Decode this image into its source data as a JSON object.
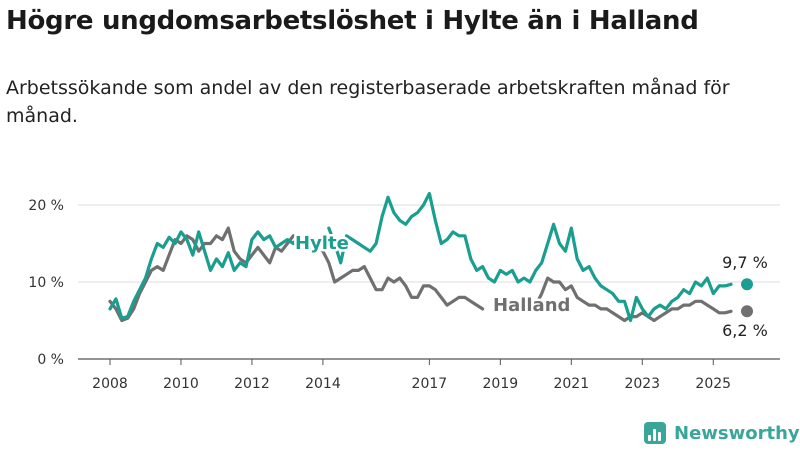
{
  "header": {
    "title": "Högre ungdomsarbetslöshet i Hylte än i Halland",
    "subtitle": "Arbetssökande som andel av den registerbaserade arbetskraften månad för månad."
  },
  "brand": {
    "name": "Newsworthy",
    "icon": "bar-chart-logo-icon",
    "color": "#3aa69a"
  },
  "chart_data": {
    "type": "line",
    "title": "",
    "xlabel": "",
    "ylabel": "",
    "x_ticks": [
      "2008",
      "2010",
      "2012",
      "2014",
      "2017",
      "2019",
      "2021",
      "2023",
      "2025"
    ],
    "y_ticks": [
      "0 %",
      "10 %",
      "20 %"
    ],
    "ylim": [
      0,
      24
    ],
    "grid": "horizontal",
    "series": [
      {
        "name": "Hylte",
        "color": "#1a9e8f",
        "end_label": "9,7 %",
        "points": [
          [
            "2008-01",
            6.5
          ],
          [
            "2008-03",
            7.8
          ],
          [
            "2008-05",
            5.3
          ],
          [
            "2008-07",
            5.5
          ],
          [
            "2008-09",
            7.5
          ],
          [
            "2008-11",
            9.0
          ],
          [
            "2009-01",
            10.5
          ],
          [
            "2009-03",
            13.0
          ],
          [
            "2009-05",
            15.0
          ],
          [
            "2009-07",
            14.5
          ],
          [
            "2009-09",
            15.8
          ],
          [
            "2009-11",
            15.0
          ],
          [
            "2010-01",
            16.5
          ],
          [
            "2010-03",
            15.5
          ],
          [
            "2010-05",
            13.5
          ],
          [
            "2010-07",
            16.5
          ],
          [
            "2010-09",
            14.0
          ],
          [
            "2010-11",
            11.5
          ],
          [
            "2011-01",
            13.0
          ],
          [
            "2011-03",
            12.0
          ],
          [
            "2011-05",
            13.8
          ],
          [
            "2011-07",
            11.5
          ],
          [
            "2011-09",
            12.5
          ],
          [
            "2011-11",
            12.0
          ],
          [
            "2012-01",
            15.5
          ],
          [
            "2012-03",
            16.5
          ],
          [
            "2012-05",
            15.5
          ],
          [
            "2012-07",
            16.0
          ],
          [
            "2012-09",
            14.5
          ],
          [
            "2012-11",
            15.0
          ],
          [
            "2013-01",
            15.5
          ],
          [
            "2013-03",
            15.0
          ],
          [
            "2013-05",
            16.0
          ],
          [
            "2014-03",
            17.0
          ],
          [
            "2014-05",
            15.0
          ],
          [
            "2014-07",
            12.5
          ],
          [
            "2014-09",
            16.0
          ],
          [
            "2014-11",
            15.5
          ],
          [
            "2015-01",
            15.0
          ],
          [
            "2015-03",
            14.5
          ],
          [
            "2015-05",
            14.0
          ],
          [
            "2015-07",
            15.0
          ],
          [
            "2015-09",
            18.5
          ],
          [
            "2015-11",
            21.0
          ],
          [
            "2016-01",
            19.0
          ],
          [
            "2016-03",
            18.0
          ],
          [
            "2016-05",
            17.5
          ],
          [
            "2016-07",
            18.5
          ],
          [
            "2016-09",
            19.0
          ],
          [
            "2016-11",
            20.0
          ],
          [
            "2017-01",
            21.5
          ],
          [
            "2017-03",
            18.0
          ],
          [
            "2017-05",
            15.0
          ],
          [
            "2017-07",
            15.5
          ],
          [
            "2017-09",
            16.5
          ],
          [
            "2017-11",
            16.0
          ],
          [
            "2018-01",
            16.0
          ],
          [
            "2018-03",
            13.0
          ],
          [
            "2018-05",
            11.5
          ],
          [
            "2018-07",
            12.0
          ],
          [
            "2018-09",
            10.5
          ],
          [
            "2018-11",
            10.0
          ],
          [
            "2019-01",
            11.5
          ],
          [
            "2019-03",
            11.0
          ],
          [
            "2019-05",
            11.5
          ],
          [
            "2019-07",
            10.0
          ],
          [
            "2019-09",
            10.5
          ],
          [
            "2019-11",
            10.0
          ],
          [
            "2020-01",
            11.5
          ],
          [
            "2020-03",
            12.5
          ],
          [
            "2020-05",
            15.0
          ],
          [
            "2020-07",
            17.5
          ],
          [
            "2020-09",
            15.0
          ],
          [
            "2020-11",
            14.0
          ],
          [
            "2021-01",
            17.0
          ],
          [
            "2021-03",
            13.0
          ],
          [
            "2021-05",
            11.5
          ],
          [
            "2021-07",
            12.0
          ],
          [
            "2021-09",
            10.5
          ],
          [
            "2021-11",
            9.5
          ],
          [
            "2022-01",
            9.0
          ],
          [
            "2022-03",
            8.5
          ],
          [
            "2022-05",
            7.5
          ],
          [
            "2022-07",
            7.5
          ],
          [
            "2022-09",
            5.0
          ],
          [
            "2022-11",
            8.0
          ],
          [
            "2023-01",
            6.5
          ],
          [
            "2023-03",
            5.5
          ],
          [
            "2023-05",
            6.5
          ],
          [
            "2023-07",
            7.0
          ],
          [
            "2023-09",
            6.5
          ],
          [
            "2023-11",
            7.5
          ],
          [
            "2024-01",
            8.0
          ],
          [
            "2024-03",
            9.0
          ],
          [
            "2024-05",
            8.5
          ],
          [
            "2024-07",
            10.0
          ],
          [
            "2024-09",
            9.5
          ],
          [
            "2024-11",
            10.5
          ],
          [
            "2025-01",
            8.5
          ],
          [
            "2025-03",
            9.5
          ],
          [
            "2025-05",
            9.5
          ],
          [
            "2025-07",
            9.7
          ]
        ]
      },
      {
        "name": "Halland",
        "color": "#707070",
        "end_label": "6,2 %",
        "points": [
          [
            "2008-01",
            7.5
          ],
          [
            "2008-03",
            6.5
          ],
          [
            "2008-05",
            5.0
          ],
          [
            "2008-07",
            5.3
          ],
          [
            "2008-09",
            6.5
          ],
          [
            "2008-11",
            8.5
          ],
          [
            "2009-01",
            10.0
          ],
          [
            "2009-03",
            11.5
          ],
          [
            "2009-05",
            12.0
          ],
          [
            "2009-07",
            11.5
          ],
          [
            "2009-09",
            13.5
          ],
          [
            "2009-11",
            15.5
          ],
          [
            "2010-01",
            15.0
          ],
          [
            "2010-03",
            16.0
          ],
          [
            "2010-05",
            15.5
          ],
          [
            "2010-07",
            14.0
          ],
          [
            "2010-09",
            15.0
          ],
          [
            "2010-11",
            15.0
          ],
          [
            "2011-01",
            16.0
          ],
          [
            "2011-03",
            15.5
          ],
          [
            "2011-05",
            17.0
          ],
          [
            "2011-07",
            14.0
          ],
          [
            "2011-09",
            13.0
          ],
          [
            "2011-11",
            12.5
          ],
          [
            "2012-01",
            13.5
          ],
          [
            "2012-03",
            14.5
          ],
          [
            "2012-05",
            13.5
          ],
          [
            "2012-07",
            12.5
          ],
          [
            "2012-09",
            14.5
          ],
          [
            "2012-11",
            14.0
          ],
          [
            "2013-01",
            15.0
          ],
          [
            "2013-03",
            16.0
          ],
          [
            "2014-01",
            14.0
          ],
          [
            "2014-03",
            12.5
          ],
          [
            "2014-05",
            10.0
          ],
          [
            "2014-07",
            10.5
          ],
          [
            "2014-09",
            11.0
          ],
          [
            "2014-11",
            11.5
          ],
          [
            "2015-01",
            11.5
          ],
          [
            "2015-03",
            12.0
          ],
          [
            "2015-05",
            10.5
          ],
          [
            "2015-07",
            9.0
          ],
          [
            "2015-09",
            9.0
          ],
          [
            "2015-11",
            10.5
          ],
          [
            "2016-01",
            10.0
          ],
          [
            "2016-03",
            10.5
          ],
          [
            "2016-05",
            9.5
          ],
          [
            "2016-07",
            8.0
          ],
          [
            "2016-09",
            8.0
          ],
          [
            "2016-11",
            9.5
          ],
          [
            "2017-01",
            9.5
          ],
          [
            "2017-03",
            9.0
          ],
          [
            "2017-05",
            8.0
          ],
          [
            "2017-07",
            7.0
          ],
          [
            "2017-09",
            7.5
          ],
          [
            "2017-11",
            8.0
          ],
          [
            "2018-01",
            8.0
          ],
          [
            "2018-03",
            7.5
          ],
          [
            "2018-05",
            7.0
          ],
          [
            "2018-07",
            6.5
          ],
          [
            "2020-01",
            7.0
          ],
          [
            "2020-03",
            8.5
          ],
          [
            "2020-05",
            10.5
          ],
          [
            "2020-07",
            10.0
          ],
          [
            "2020-09",
            10.0
          ],
          [
            "2020-11",
            9.0
          ],
          [
            "2021-01",
            9.5
          ],
          [
            "2021-03",
            8.0
          ],
          [
            "2021-05",
            7.5
          ],
          [
            "2021-07",
            7.0
          ],
          [
            "2021-09",
            7.0
          ],
          [
            "2021-11",
            6.5
          ],
          [
            "2022-01",
            6.5
          ],
          [
            "2022-03",
            6.0
          ],
          [
            "2022-05",
            5.5
          ],
          [
            "2022-07",
            5.0
          ],
          [
            "2022-09",
            5.5
          ],
          [
            "2022-11",
            5.5
          ],
          [
            "2023-01",
            6.0
          ],
          [
            "2023-03",
            5.5
          ],
          [
            "2023-05",
            5.0
          ],
          [
            "2023-07",
            5.5
          ],
          [
            "2023-09",
            6.0
          ],
          [
            "2023-11",
            6.5
          ],
          [
            "2024-01",
            6.5
          ],
          [
            "2024-03",
            7.0
          ],
          [
            "2024-05",
            7.0
          ],
          [
            "2024-07",
            7.5
          ],
          [
            "2024-09",
            7.5
          ],
          [
            "2024-11",
            7.0
          ],
          [
            "2025-01",
            6.5
          ],
          [
            "2025-03",
            6.0
          ],
          [
            "2025-05",
            6.0
          ],
          [
            "2025-07",
            6.2
          ]
        ]
      }
    ]
  }
}
